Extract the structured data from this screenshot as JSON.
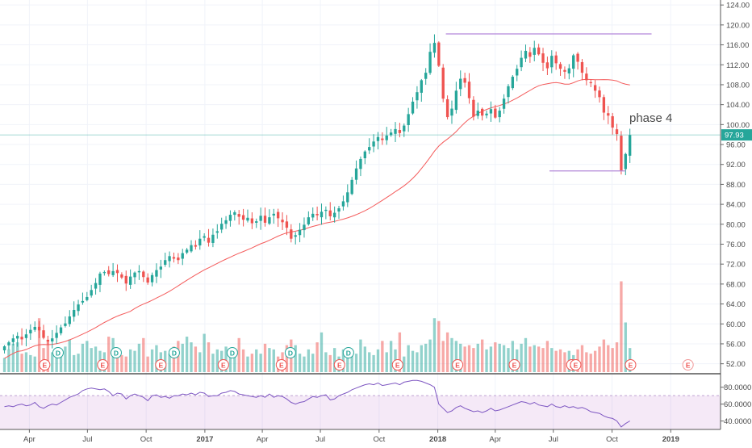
{
  "chart_data": [
    {
      "type": "candlestick",
      "title": "",
      "annotation": "phase 4",
      "y_axis": {
        "ticks": [
          "124.00",
          "120.00",
          "116.00",
          "112.00",
          "108.00",
          "104.00",
          "100.00",
          "96.00",
          "92.00",
          "88.00",
          "84.00",
          "80.00",
          "76.00",
          "72.00",
          "68.00",
          "64.00",
          "60.00",
          "56.00",
          "52.00"
        ],
        "range": [
          50,
          125
        ]
      },
      "x_axis": {
        "ticks": [
          {
            "label": "Apr",
            "date": "2016-04-01"
          },
          {
            "label": "Jul",
            "date": "2016-07-01"
          },
          {
            "label": "Oct",
            "date": "2016-10-01"
          },
          {
            "label": "2017",
            "date": "2017-01-01"
          },
          {
            "label": "Apr",
            "date": "2017-04-01"
          },
          {
            "label": "Jul",
            "date": "2017-07-01"
          },
          {
            "label": "Oct",
            "date": "2017-10-01"
          },
          {
            "label": "2018",
            "date": "2018-01-01"
          },
          {
            "label": "Apr",
            "date": "2018-04-01"
          },
          {
            "label": "Jul",
            "date": "2018-07-01"
          },
          {
            "label": "Oct",
            "date": "2018-10-01"
          },
          {
            "label": "2019",
            "date": "2019-01-01"
          }
        ],
        "range": [
          "2016-02-15",
          "2019-03-20"
        ]
      },
      "last_price": "97.93",
      "last_price_value": 97.93,
      "weekly_closes": [
        55.5,
        56.3,
        57.1,
        57.6,
        56.9,
        57.9,
        58.8,
        59.4,
        58.7,
        57.2,
        56.4,
        57.1,
        58.2,
        59.3,
        60.1,
        61.5,
        62.8,
        63.9,
        64.6,
        65.4,
        66.8,
        68.2,
        70.1,
        70.4,
        70.0,
        70.6,
        70.2,
        69.3,
        68.1,
        69.5,
        70.3,
        70.6,
        69.4,
        68.3,
        69.8,
        70.8,
        71.5,
        72.8,
        73.6,
        73.1,
        72.8,
        74.2,
        74.9,
        75.8,
        75.5,
        77.1,
        77.6,
        76.3,
        77.9,
        78.6,
        80.1,
        80.8,
        81.9,
        82.4,
        81.5,
        80.9,
        81.3,
        80.2,
        80.6,
        81.7,
        80.3,
        81.4,
        82.1,
        81.2,
        80.4,
        79.3,
        77.1,
        77.8,
        78.9,
        79.9,
        81.4,
        82.1,
        81.8,
        82.5,
        82.9,
        81.6,
        82.3,
        83.2,
        84.6,
        86.4,
        88.9,
        91.2,
        93.1,
        94.6,
        95.5,
        96.6,
        97.5,
        96.9,
        97.8,
        98.4,
        99.1,
        98.3,
        99.8,
        102.1,
        104.6,
        106.5,
        108.9,
        110.4,
        114.6,
        116.4,
        111.8,
        105.2,
        101.5,
        103.2,
        106.8,
        109.2,
        108.4,
        105.3,
        101.6,
        102.8,
        101.8,
        102.2,
        103.1,
        101.4,
        102.8,
        105.2,
        107.7,
        109.6,
        111.2,
        113.4,
        114.8,
        113.6,
        115.4,
        114.1,
        112.4,
        111.3,
        113.8,
        112.3,
        111.2,
        110.6,
        111.3,
        113.9,
        112.6,
        110.4,
        108.9,
        108.3,
        106.8,
        105.5,
        102.4,
        101.8,
        99.4,
        98.1,
        90.7,
        94.1,
        97.9
      ],
      "weekly_volume": [
        1.0,
        1.6,
        2.0,
        2.1,
        1.3,
        1.4,
        1.2,
        1.1,
        3.8,
        1.7,
        2.1,
        1.4,
        1.5,
        1.6,
        1.8,
        2.3,
        1.2,
        1.3,
        2.0,
        2.2,
        1.7,
        1.8,
        1.5,
        1.4,
        2.5,
        2.4,
        1.3,
        1.2,
        1.1,
        1.6,
        1.5,
        2.0,
        2.4,
        1.1,
        1.6,
        1.9,
        1.4,
        1.5,
        1.3,
        1.8,
        2.2,
        2.0,
        2.5,
        2.1,
        1.8,
        1.4,
        2.7,
        2.1,
        1.3,
        1.6,
        1.5,
        1.8,
        1.7,
        1.3,
        2.4,
        1.6,
        1.1,
        1.3,
        1.6,
        1.3,
        2.0,
        1.7,
        1.6,
        1.1,
        1.4,
        1.9,
        2.3,
        1.9,
        1.3,
        1.1,
        1.6,
        1.3,
        2.1,
        2.8,
        1.4,
        1.2,
        1.7,
        1.1,
        1.6,
        1.4,
        1.2,
        1.3,
        2.3,
        1.8,
        1.4,
        1.2,
        1.6,
        2.2,
        1.4,
        2.2,
        1.6,
        2.8,
        1.1,
        1.9,
        1.5,
        1.4,
        1.9,
        2.0,
        2.3,
        3.8,
        3.6,
        2.2,
        2.8,
        2.4,
        2.2,
        2.0,
        1.8,
        1.9,
        1.7,
        2.0,
        2.3,
        1.6,
        1.8,
        2.1,
        2.0,
        1.9,
        1.7,
        2.2,
        1.6,
        2.0,
        2.4,
        1.8,
        1.9,
        1.8,
        1.7,
        2.2,
        1.7,
        1.5,
        1.6,
        1.4,
        1.5,
        1.2,
        1.6,
        1.9,
        1.4,
        1.3,
        1.5,
        1.8,
        2.3,
        1.9,
        1.7,
        2.1,
        6.4,
        3.5,
        1.7
      ]
    },
    {
      "type": "line",
      "title": "",
      "y_axis": {
        "ticks": [
          "80.0000",
          "60.0000",
          "40.0000"
        ],
        "range": [
          30,
          95
        ]
      },
      "band": [
        30,
        70
      ],
      "values": [
        57,
        58,
        57,
        59,
        60,
        58,
        59,
        62,
        57,
        55,
        58,
        60,
        59,
        62,
        65,
        68,
        70,
        72,
        76,
        78,
        79,
        78,
        77,
        78,
        75,
        70,
        73,
        72,
        66,
        70,
        72,
        70,
        68,
        64,
        70,
        71,
        68,
        69,
        67,
        70,
        70,
        72,
        71,
        73,
        71,
        74,
        73,
        69,
        70,
        70,
        73,
        74,
        76,
        75,
        72,
        71,
        70,
        69,
        68,
        70,
        68,
        72,
        68,
        70,
        69,
        66,
        62,
        60,
        62,
        63,
        66,
        69,
        68,
        70,
        71,
        65,
        66,
        70,
        72,
        74,
        77,
        79,
        81,
        83,
        84,
        83,
        85,
        82,
        83,
        84,
        85,
        83,
        86,
        87,
        88,
        88,
        87,
        85,
        83,
        80,
        60,
        55,
        50,
        52,
        56,
        58,
        55,
        53,
        51,
        52,
        50,
        52,
        55,
        52,
        53,
        55,
        57,
        59,
        61,
        63,
        62,
        60,
        62,
        59,
        58,
        57,
        60,
        57,
        56,
        58,
        56,
        57,
        55,
        56,
        54,
        51,
        50,
        49,
        46,
        44,
        43,
        40,
        33,
        37,
        40
      ]
    }
  ]
}
